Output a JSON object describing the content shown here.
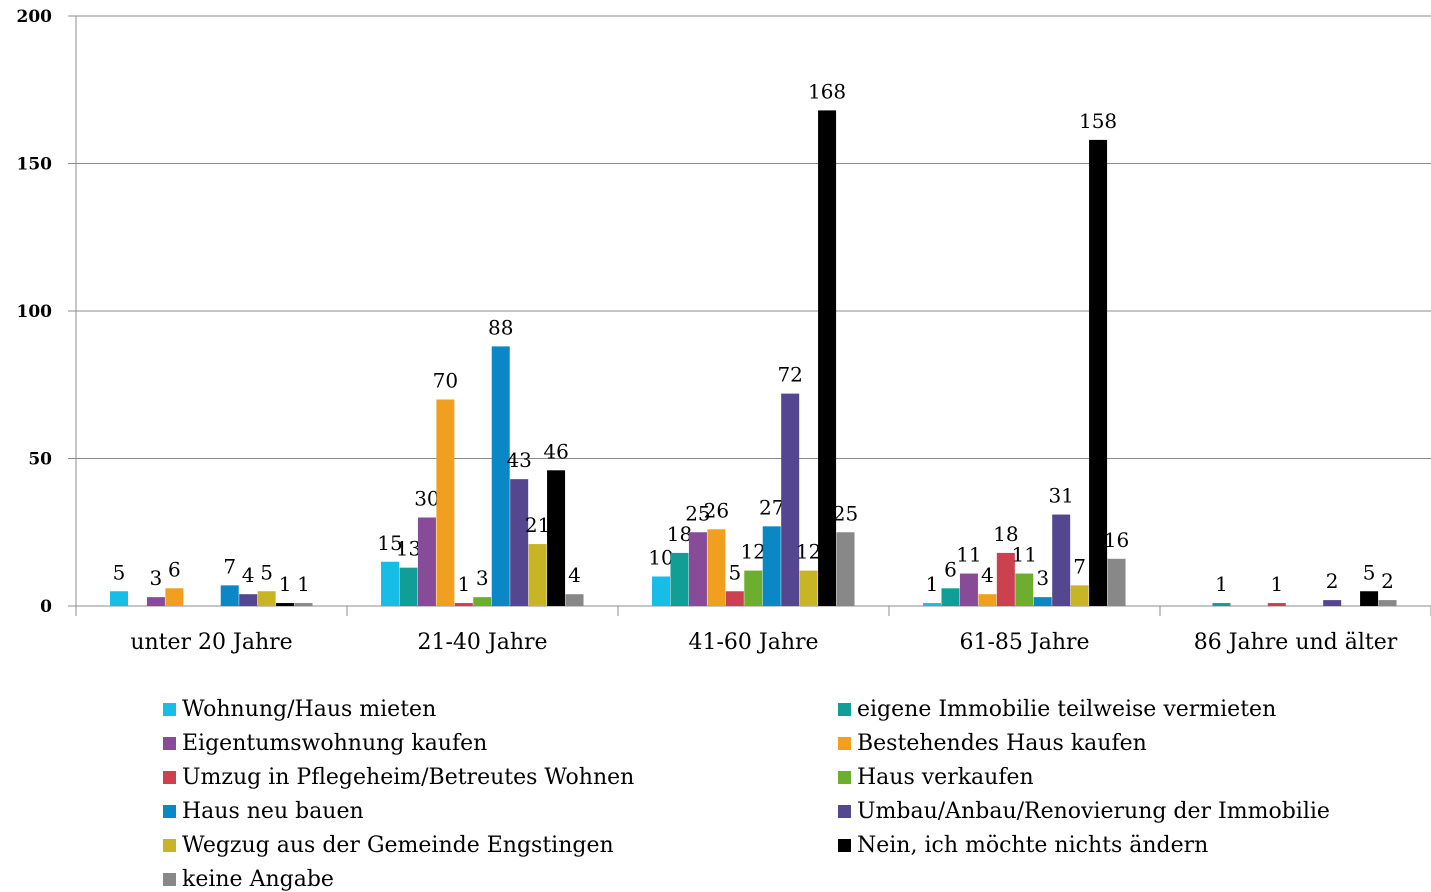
{
  "chart_data": {
    "type": "bar",
    "categories": [
      "unter 20 Jahre",
      "21-40 Jahre",
      "41-60 Jahre",
      "61-85 Jahre",
      "86 Jahre und älter"
    ],
    "ylim": [
      0,
      200
    ],
    "yticks": [
      0,
      50,
      100,
      150,
      200
    ],
    "grid": true,
    "legend_position": "bottom",
    "series": [
      {
        "name": "Wohnung/Haus mieten",
        "color": "#17BDE6",
        "values": [
          5,
          15,
          10,
          1,
          0
        ],
        "labels": [
          "5",
          "15",
          "10",
          "1",
          ""
        ]
      },
      {
        "name": "eigene Immobilie teilweise vermieten",
        "color": "#119E96",
        "values": [
          0,
          13,
          18,
          6,
          1
        ],
        "labels": [
          "",
          "13",
          "18",
          "6",
          "1"
        ]
      },
      {
        "name": "Eigentumswohnung kaufen",
        "color": "#874B98",
        "values": [
          3,
          30,
          25,
          11,
          0
        ],
        "labels": [
          "3",
          "30",
          "25",
          "11",
          ""
        ]
      },
      {
        "name": "Bestehendes Haus kaufen",
        "color": "#F0A01E",
        "values": [
          6,
          70,
          26,
          4,
          0
        ],
        "labels": [
          "6",
          "70",
          "26",
          "4",
          ""
        ]
      },
      {
        "name": "Umzug in Pflegeheim/Betreutes Wohnen",
        "color": "#CC4150",
        "values": [
          0,
          1,
          5,
          18,
          1
        ],
        "labels": [
          "",
          "1",
          "5",
          "18",
          "1"
        ]
      },
      {
        "name": "Haus verkaufen",
        "color": "#6DAE2E",
        "values": [
          0,
          3,
          12,
          11,
          0
        ],
        "labels": [
          "",
          "3",
          "12",
          "11",
          ""
        ]
      },
      {
        "name": "Haus neu bauen",
        "color": "#0A87C5",
        "values": [
          7,
          88,
          27,
          3,
          0
        ],
        "labels": [
          "7",
          "88",
          "27",
          "3",
          ""
        ]
      },
      {
        "name": "Umbau/Anbau/Renovierung der Immobilie",
        "color": "#54478F",
        "values": [
          4,
          43,
          72,
          31,
          2
        ],
        "labels": [
          "4",
          "43",
          "72",
          "31",
          "2"
        ]
      },
      {
        "name": "Wegzug aus der Gemeinde Engstingen",
        "color": "#C8B526",
        "values": [
          5,
          21,
          12,
          7,
          0
        ],
        "labels": [
          "5",
          "21",
          "12",
          "7",
          ""
        ]
      },
      {
        "name": "Nein, ich möchte nichts ändern",
        "color": "#000000",
        "values": [
          1,
          46,
          168,
          158,
          5
        ],
        "labels": [
          "1",
          "46",
          "168",
          "158",
          "5"
        ]
      },
      {
        "name": "keine Angabe",
        "color": "#888888",
        "values": [
          1,
          4,
          25,
          16,
          2
        ],
        "labels": [
          "1",
          "4",
          "25",
          "16",
          "2"
        ]
      }
    ]
  }
}
